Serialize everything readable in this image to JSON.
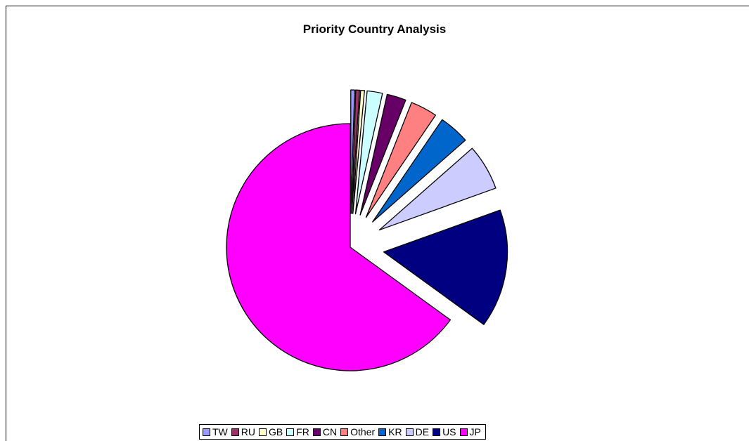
{
  "chart_data": {
    "type": "pie",
    "title": "Priority Country Analysis",
    "categories": [
      "TW",
      "RU",
      "GB",
      "FR",
      "CN",
      "Other",
      "KR",
      "DE",
      "US",
      "JP"
    ],
    "values": [
      0.5,
      0.5,
      0.5,
      2.0,
      2.5,
      3.5,
      4.0,
      6.0,
      15.5,
      65.0
    ],
    "colors": [
      "#9999ff",
      "#993366",
      "#ffffcc",
      "#ccffff",
      "#660066",
      "#ff8080",
      "#0066cc",
      "#ccccff",
      "#000080",
      "#ff00ff"
    ],
    "exploded": [
      "TW",
      "RU",
      "GB",
      "FR",
      "CN",
      "Other",
      "KR",
      "DE",
      "US"
    ],
    "legend_position": "bottom"
  }
}
